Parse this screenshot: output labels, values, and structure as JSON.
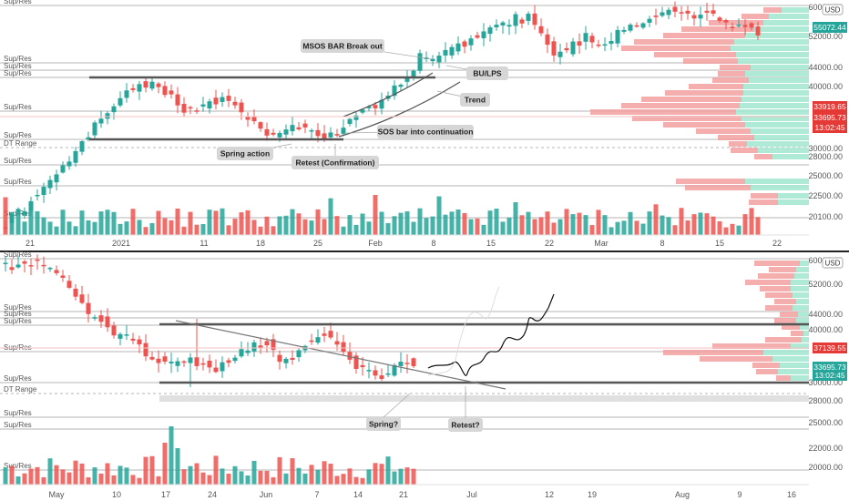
{
  "colors": {
    "up": "#26a69a",
    "down": "#ef5350",
    "up_light": "#a5e8d0",
    "down_light": "#f2a0a0",
    "level_line": "#9e9e9e",
    "key_line": "#555555",
    "price_red": "#e53935",
    "callout_bg": "#d6d6d6"
  },
  "chart_data": [
    {
      "type": "candlestick",
      "panel": "top",
      "currency_badge": "USD",
      "x_tick_labels": [
        "21",
        "2021",
        "11",
        "18",
        "25",
        "Feb",
        "8",
        "15",
        "22",
        "Mar",
        "8",
        "15",
        "22"
      ],
      "y_tick_labels": [
        "60000.00",
        "52000.00",
        "44000.00",
        "40000.00",
        "30000.00",
        "28000.00",
        "25000.00",
        "22500.00",
        "20100.00"
      ],
      "ylim": [
        19500,
        62000
      ],
      "price_tags": [
        {
          "label": "55072.44",
          "value": 55072.44,
          "color": "#26a69a"
        },
        {
          "label": "33919.65",
          "value": 33919.65,
          "color": "#e53935"
        },
        {
          "label": "33695.73",
          "value": 33695.73,
          "color": "#e53935"
        },
        {
          "label": "13:02:45",
          "value": 32000,
          "color": "#e53935"
        }
      ],
      "levels": [
        {
          "label": "Sup/Res",
          "value": 61500,
          "style": "thin"
        },
        {
          "label": "Sup/Res",
          "value": 45200,
          "style": "thin"
        },
        {
          "label": "Sup/Res",
          "value": 44100,
          "style": "thin"
        },
        {
          "label": "Sup/Res",
          "value": 42800,
          "style": "thin"
        },
        {
          "label": "Sup/Res",
          "value": 35400,
          "style": "thin"
        },
        {
          "label": "Sup/Res",
          "value": 30500,
          "style": "thin"
        },
        {
          "label": "DT Range",
          "value": 29000,
          "style": "dashed"
        },
        {
          "label": "Sup/Res",
          "value": 26200,
          "style": "thin"
        },
        {
          "label": "Sup/Res",
          "value": 24300,
          "style": "thin"
        },
        {
          "label": "Sup/Res",
          "value": 21200,
          "style": "thin"
        }
      ],
      "callouts": [
        "MSOS BAR Break out",
        "BU/LPS",
        "Trend",
        "SOS bar into continuation",
        "Spring action",
        "Retest (Confirmation)"
      ]
    },
    {
      "type": "candlestick",
      "panel": "bottom",
      "currency_badge": "USD",
      "x_tick_labels": [
        "May",
        "10",
        "17",
        "24",
        "Jun",
        "7",
        "14",
        "21",
        "Jul",
        "12",
        "19",
        "Aug",
        "9",
        "16"
      ],
      "y_tick_labels": [
        "60000.00",
        "52000.00",
        "44000.00",
        "40000.00",
        "30000.00",
        "28000.00",
        "25000.00",
        "22000.00",
        "20000.00"
      ],
      "ylim": [
        19000,
        61000
      ],
      "price_tags": [
        {
          "label": "37139.55",
          "value": 37139.55,
          "color": "#e53935"
        },
        {
          "label": "33695.73",
          "value": 33695.73,
          "color": "#26a69a"
        },
        {
          "label": "13:02:45",
          "value": 32500,
          "color": "#26a69a"
        }
      ],
      "levels": [
        {
          "label": "Sup/Res",
          "value": 58500,
          "style": "thin"
        },
        {
          "label": "Sup/Res",
          "value": 44300,
          "style": "thin"
        },
        {
          "label": "Sup/Res",
          "value": 43300,
          "style": "thin"
        },
        {
          "label": "Sup/Res",
          "value": 42200,
          "style": "thin"
        },
        {
          "label": "Sup/Res",
          "value": 37100,
          "style": "thin"
        },
        {
          "label": "Sup/Res",
          "value": 31200,
          "style": "thin"
        },
        {
          "label": "DT Range",
          "value": 29500,
          "style": "dashed"
        },
        {
          "label": "Sup/Res",
          "value": 26600,
          "style": "thin"
        },
        {
          "label": "Sup/Res",
          "value": 24700,
          "style": "thin"
        },
        {
          "label": "Sup/Res",
          "value": 21800,
          "style": "thin"
        }
      ],
      "callouts": [
        "Spring?",
        "Retest?"
      ]
    }
  ]
}
